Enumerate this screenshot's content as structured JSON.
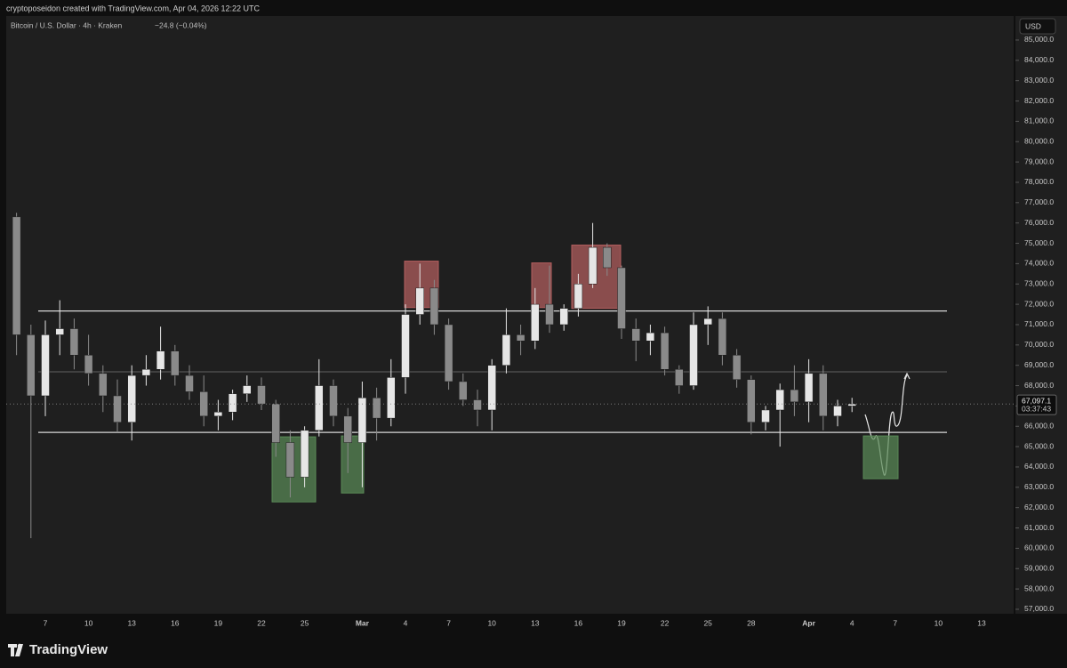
{
  "header": {
    "attribution": "cryptoposeidon created with TradingView.com, Apr 04, 2026 12:22 UTC"
  },
  "chart_data": {
    "type": "candlestick",
    "symbol": "Bitcoin / U.S. Dollar · 4h · Kraken",
    "change": "−24.8 (−0.04%)",
    "currency": "USD",
    "categories": [
      null,
      null,
      "7",
      null,
      null,
      "10",
      null,
      null,
      "13",
      null,
      null,
      "16",
      null,
      null,
      "19",
      null,
      null,
      "22",
      null,
      null,
      "25",
      null,
      null,
      null,
      "Mar",
      null,
      null,
      "4",
      null,
      null,
      "7",
      null,
      null,
      "10",
      null,
      null,
      "13",
      null,
      null,
      "16",
      null,
      null,
      "19",
      null,
      null,
      "22",
      null,
      null,
      "25",
      null,
      null,
      "28",
      null,
      null,
      null,
      "Apr",
      null,
      null,
      "4",
      null,
      null,
      "7",
      null,
      null,
      "10",
      null,
      null,
      "13",
      null
    ],
    "open": [
      76300,
      70500,
      67500,
      70500,
      70800,
      69500,
      68600,
      67500,
      66200,
      68500,
      68800,
      69700,
      68500,
      67700,
      66500,
      66700,
      67600,
      68000,
      67100,
      65200,
      63500,
      65800,
      68000,
      66500,
      65200,
      67400,
      66400,
      68400,
      71500,
      72800,
      71000,
      68200,
      67300,
      66800,
      69000,
      70500,
      70200,
      72000,
      71000,
      71800,
      73000,
      74800,
      73800,
      70800,
      70200,
      70600,
      68800,
      68000,
      71000,
      71300,
      69500,
      68300,
      66200,
      66800,
      67800,
      67200,
      68600,
      66500,
      67000,
      null,
      null,
      null,
      null,
      null,
      null,
      null,
      null,
      null,
      null
    ],
    "high": [
      76500,
      71000,
      71200,
      72200,
      71300,
      70500,
      69000,
      68300,
      69000,
      69500,
      70900,
      70000,
      69000,
      68500,
      67300,
      67800,
      68500,
      68400,
      67300,
      65800,
      66000,
      69300,
      68300,
      66900,
      68200,
      67900,
      69300,
      72000,
      74000,
      73200,
      71300,
      68600,
      67800,
      69300,
      71800,
      71000,
      72800,
      73900,
      72000,
      73500,
      76000,
      75000,
      73900,
      71300,
      71000,
      70900,
      69000,
      71600,
      71900,
      71600,
      69800,
      68500,
      67000,
      68100,
      69000,
      69300,
      69000,
      67300,
      67400,
      null,
      null,
      null,
      null,
      null,
      null,
      null,
      null,
      null,
      null
    ],
    "low": [
      69500,
      60500,
      66500,
      69500,
      68800,
      68000,
      66700,
      65700,
      65300,
      68000,
      68300,
      68000,
      67300,
      66000,
      65800,
      66300,
      67200,
      66800,
      64500,
      62500,
      63000,
      65500,
      66000,
      63700,
      63000,
      65300,
      66000,
      67600,
      71000,
      70500,
      67800,
      67000,
      66000,
      65800,
      68600,
      69500,
      69800,
      70600,
      70700,
      71400,
      72800,
      73400,
      70300,
      69200,
      69500,
      68500,
      67600,
      67800,
      70000,
      69000,
      67900,
      65600,
      65800,
      65000,
      66500,
      66200,
      65800,
      66000,
      66700,
      null,
      null,
      null,
      null,
      null,
      null,
      null,
      null,
      null,
      null
    ],
    "close": [
      70500,
      67500,
      70500,
      70800,
      69500,
      68600,
      67500,
      66200,
      68500,
      68800,
      69700,
      68500,
      67700,
      66500,
      66700,
      67600,
      68000,
      67100,
      65200,
      63500,
      65800,
      68000,
      66500,
      65200,
      67400,
      66400,
      68400,
      71500,
      72800,
      71000,
      68200,
      67300,
      66800,
      69000,
      70500,
      70200,
      72000,
      71000,
      71800,
      73000,
      74800,
      73800,
      70800,
      70200,
      70600,
      68800,
      68000,
      71000,
      71300,
      69500,
      68300,
      66200,
      66800,
      67800,
      67200,
      68600,
      66500,
      67000,
      67097.1,
      null,
      null,
      null,
      null,
      null,
      null,
      null,
      null,
      null,
      null
    ],
    "up_color": "#e6e6e6",
    "down_color": "#8a8a8a",
    "ylim": [
      56780,
      86180
    ],
    "yticks": [
      {
        "value": 57000,
        "label": "57,000.0"
      },
      {
        "value": 58000,
        "label": "58,000.0"
      },
      {
        "value": 59000,
        "label": "59,000.0"
      },
      {
        "value": 60000,
        "label": "60,000.0"
      },
      {
        "value": 61000,
        "label": "61,000.0"
      },
      {
        "value": 62000,
        "label": "62,000.0"
      },
      {
        "value": 63000,
        "label": "63,000.0"
      },
      {
        "value": 64000,
        "label": "64,000.0"
      },
      {
        "value": 65000,
        "label": "65,000.0"
      },
      {
        "value": 66000,
        "label": "66,000.0"
      },
      {
        "value": 67000,
        "label": "67,000.0"
      },
      {
        "value": 68000,
        "label": "68,000.0"
      },
      {
        "value": 69000,
        "label": "69,000.0"
      },
      {
        "value": 70000,
        "label": "70,000.0"
      },
      {
        "value": 71000,
        "label": "71,000.0"
      },
      {
        "value": 72000,
        "label": "72,000.0"
      },
      {
        "value": 73000,
        "label": "73,000.0"
      },
      {
        "value": 74000,
        "label": "74,000.0"
      },
      {
        "value": 75000,
        "label": "75,000.0"
      },
      {
        "value": 76000,
        "label": "76,000.0"
      },
      {
        "value": 77000,
        "label": "77,000.0"
      },
      {
        "value": 78000,
        "label": "78,000.0"
      },
      {
        "value": 79000,
        "label": "79,000.0"
      },
      {
        "value": 80000,
        "label": "80,000.0"
      },
      {
        "value": 81000,
        "label": "81,000.0"
      },
      {
        "value": 82000,
        "label": "82,000.0"
      },
      {
        "value": 83000,
        "label": "83,000.0"
      },
      {
        "value": 84000,
        "label": "84,000.0"
      },
      {
        "value": 85000,
        "label": "85,000.0"
      }
    ],
    "levels": [
      71670,
      68680,
      65700
    ],
    "zones": [
      {
        "color": "#b45f5f",
        "range": [
          71842,
          74123
        ]
      },
      {
        "color": "#b45f5f",
        "range": [
          71842,
          74035
        ]
      },
      {
        "color": "#b45f5f",
        "range": [
          71798,
          74912
        ]
      },
      {
        "color": "#5a8a57",
        "range": [
          62281,
          65482
        ]
      },
      {
        "color": "#5a8a57",
        "range": [
          62719,
          65526
        ]
      },
      {
        "color": "#5a8a57",
        "range": [
          63421,
          65526
        ]
      }
    ],
    "last_price": {
      "value": 67097.1,
      "label": "67,097.1"
    },
    "countdown": "03:37:43"
  },
  "footer": {
    "brand": "TradingView"
  }
}
